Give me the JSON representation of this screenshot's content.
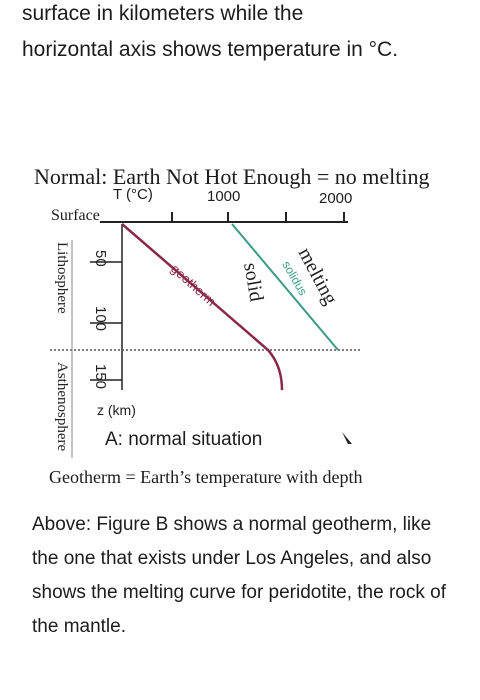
{
  "top_text": {
    "line1": "surface in kilometers while the",
    "line2": "horizontal axis shows temperature in °C."
  },
  "figure": {
    "title": "Normal: Earth Not Hot Enough = no melting",
    "x_axis_label": "T (°C)",
    "x_ticks": [
      "1000",
      "2000"
    ],
    "surface_label": "Surface",
    "depth_ticks": [
      "50",
      "100",
      "150"
    ],
    "depth_unit": "z (km)",
    "layer_labels": {
      "upper": "Lithosphere",
      "lower": "Asthenosphere"
    },
    "curve_labels": {
      "geotherm": "geotherm",
      "solidus": "solidus",
      "solid": "solid",
      "melting": "melting"
    },
    "colors": {
      "geotherm": "#8a2848",
      "solidus": "#3a9a86",
      "boundary": "#555555"
    },
    "caption": "A: normal situation",
    "definition": "Geotherm = Earth’s temperature with depth"
  },
  "bottom_text": "Above: Figure B shows a normal geotherm, like the one that exists under Los Angeles, and also shows the melting curve for peridotite, the rock of the mantle."
}
